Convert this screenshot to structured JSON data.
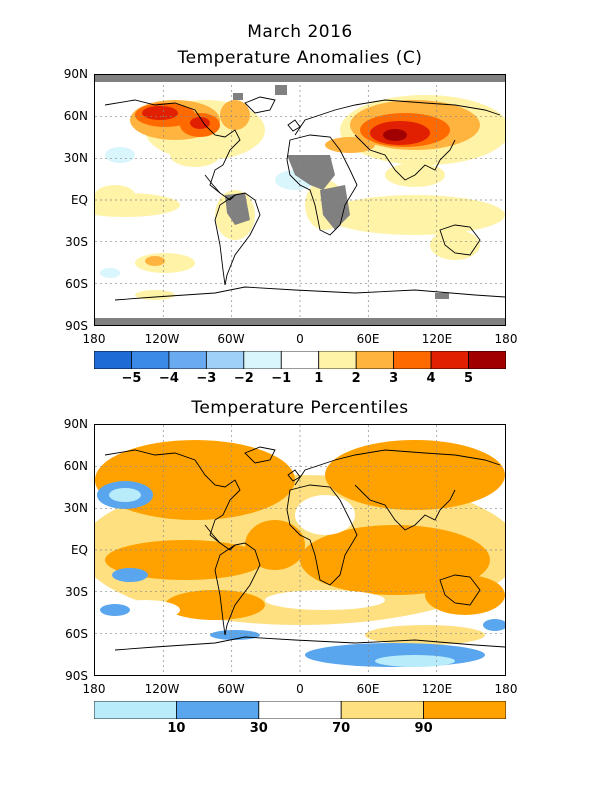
{
  "map1": {
    "title1": "March 2016",
    "title2": "Temperature Anomalies (C)",
    "lat_labels": [
      "90N",
      "60N",
      "30N",
      "EQ",
      "30S",
      "60S",
      "90S"
    ],
    "lon_labels": [
      "180",
      "120W",
      "60W",
      "0",
      "60E",
      "120E",
      "180"
    ],
    "colorbar": {
      "colors": [
        "#1e6bd6",
        "#3c8ae8",
        "#6aaaf0",
        "#9fd0f8",
        "#d8f6fb",
        "#ffffff",
        "#fff3a8",
        "#ffb440",
        "#ff6a00",
        "#e02000",
        "#a00000"
      ],
      "labels": [
        "−5",
        "−4",
        "−3",
        "−2",
        "−1",
        "1",
        "2",
        "3",
        "4",
        "5"
      ]
    }
  },
  "map2": {
    "title": "Temperature Percentiles",
    "lat_labels": [
      "90N",
      "60N",
      "30N",
      "EQ",
      "30S",
      "60S",
      "90S"
    ],
    "lon_labels": [
      "180",
      "120W",
      "60W",
      "0",
      "60E",
      "120E",
      "180"
    ],
    "colorbar": {
      "colors": [
        "#b8ecfb",
        "#5aa6ee",
        "#ffffff",
        "#ffe080",
        "#ffa200"
      ],
      "labels": [
        "10",
        "30",
        "70",
        "90"
      ]
    }
  },
  "colors": {
    "missing": "#808080",
    "coast": "#000000",
    "grid": "#888888"
  }
}
